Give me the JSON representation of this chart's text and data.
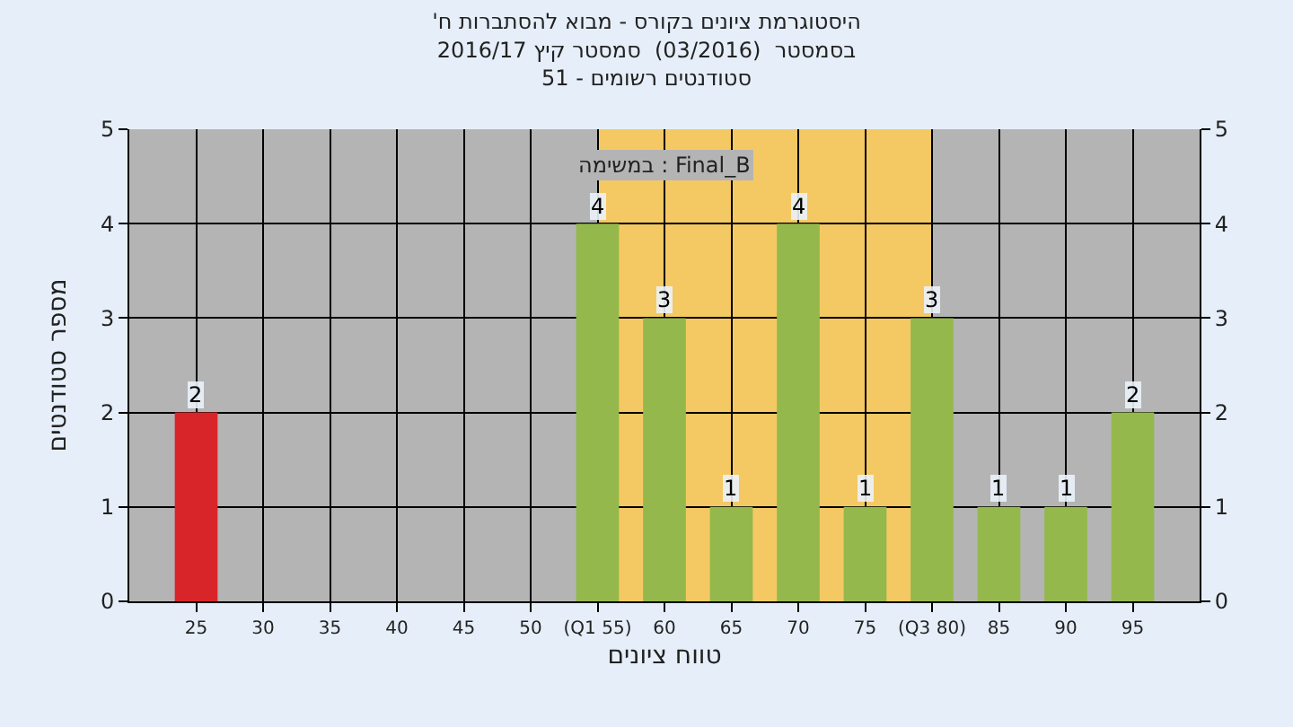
{
  "chart_data": {
    "type": "bar",
    "title": "'היסטוגרמת ציונים בקורס - מבוא להסתברות ח",
    "subtitle": "בסמסטר  (03/2016)  סמסטר קיץ 2016/17\nסטודנטים רשומים - 51",
    "xlabel": "טווח ציונים",
    "ylabel": "מספר סטודנטים",
    "annotations": [
      "במשימה : Final_B"
    ],
    "x": [
      25,
      30,
      35,
      40,
      45,
      50,
      55,
      60,
      65,
      70,
      75,
      80,
      85,
      90,
      95
    ],
    "values": [
      2,
      0,
      0,
      0,
      0,
      0,
      4,
      3,
      1,
      4,
      1,
      3,
      1,
      1,
      2
    ],
    "colors": [
      "#d8252a",
      "#94b84c",
      "#94b84c",
      "#94b84c",
      "#94b84c",
      "#94b84c",
      "#94b84c",
      "#94b84c",
      "#94b84c",
      "#94b84c",
      "#94b84c",
      "#94b84c",
      "#94b84c",
      "#94b84c",
      "#94b84c"
    ],
    "value_labels": [
      "2",
      null,
      null,
      null,
      null,
      null,
      "4",
      "3",
      "1",
      "4",
      "1",
      "3",
      "1",
      "1",
      "2"
    ],
    "xlim": [
      20,
      100
    ],
    "xticks": [
      25,
      30,
      35,
      40,
      45,
      50,
      {
        "value": 55,
        "label": "(Q1 55)"
      },
      60,
      65,
      70,
      75,
      {
        "value": 80,
        "label": "(Q3 80)"
      },
      85,
      90,
      95
    ],
    "ylim": [
      0,
      5
    ],
    "yticks": [
      0,
      1,
      2,
      3,
      4,
      5
    ],
    "y2lim": [
      0,
      5
    ],
    "y2ticks": [
      0,
      1,
      2,
      3,
      4,
      5
    ],
    "bands": [
      {
        "axis": "x",
        "from": 55,
        "to": 80,
        "label": null,
        "color": "#ffcc55"
      }
    ],
    "grid": true
  }
}
